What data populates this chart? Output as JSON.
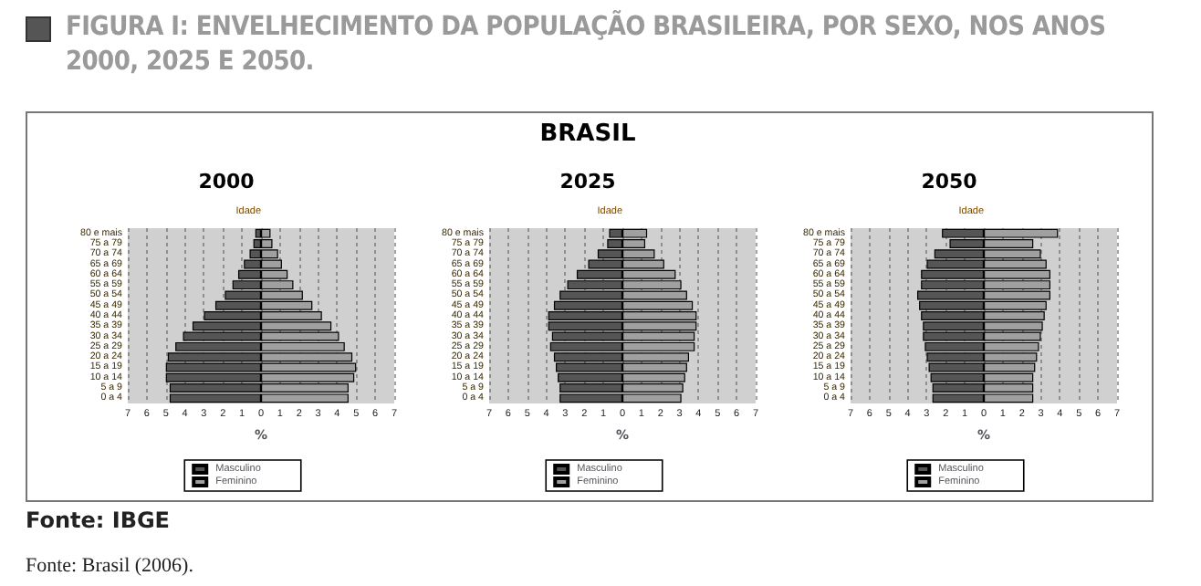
{
  "chart_data": [
    {
      "type": "other",
      "title": "FIGURA I: ENVELHECIMENTO DA POPULAÇÃO BRASILEIRA, POR SEXO, NOS ANOS 2000, 2025 E 2050.",
      "subtitle": "BRASIL",
      "annotations": [
        "Fonte: IBGE",
        "Fonte: Brasil (2006)."
      ]
    },
    {
      "type": "bar",
      "stacked": true,
      "orientation": "horizontal",
      "title": "2000",
      "xlabel": "%",
      "ylabel": "Idade",
      "grid": "x",
      "legend": "bottom",
      "categories": [
        "80 e mais",
        "75 a 79",
        "70 a 74",
        "65 a 69",
        "60 a 64",
        "55 a 59",
        "50 a 54",
        "45 a 49",
        "40 a 44",
        "35 a 39",
        "30 a 34",
        "25 a 29",
        "20 a 24",
        "15 a 19",
        "10 a 14",
        "5 a 9",
        "0 a 4"
      ],
      "xlim": [
        -7,
        7
      ],
      "xticks": [
        {
          "value": -7,
          "label": "7"
        },
        {
          "value": -6,
          "label": "6"
        },
        {
          "value": -5,
          "label": "5"
        },
        {
          "value": -4,
          "label": "4"
        },
        {
          "value": -3,
          "label": "3"
        },
        {
          "value": -2,
          "label": "2"
        },
        {
          "value": -1,
          "label": "1"
        },
        0,
        1,
        2,
        3,
        4,
        5,
        6,
        7
      ],
      "series": [
        {
          "name": "Masculino",
          "color": "#555555",
          "values": [
            -0.3,
            -0.4,
            -0.6,
            -0.9,
            -1.2,
            -1.5,
            -1.9,
            -2.4,
            -3.0,
            -3.6,
            -4.1,
            -4.5,
            -4.9,
            -5.0,
            -5.0,
            -4.8,
            -4.8
          ]
        },
        {
          "name": "Feminino",
          "color": "#a0a0a0",
          "values": [
            0.5,
            0.6,
            0.9,
            1.1,
            1.4,
            1.7,
            2.2,
            2.7,
            3.2,
            3.7,
            4.1,
            4.4,
            4.8,
            5.0,
            4.9,
            4.6,
            4.6
          ]
        }
      ]
    },
    {
      "type": "bar",
      "stacked": true,
      "orientation": "horizontal",
      "title": "2025",
      "xlabel": "%",
      "ylabel": "Idade",
      "grid": "x",
      "legend": "bottom",
      "categories": [
        "80 e mais",
        "75 a 79",
        "70 a 74",
        "65 a 69",
        "60 a 64",
        "55 a 59",
        "50 a 54",
        "45 a 49",
        "40 a 44",
        "35 a 39",
        "30 a 34",
        "25 a 29",
        "20 a 24",
        "15 a 19",
        "10 a 14",
        "5 a 9",
        "0 a 4"
      ],
      "xlim": [
        -7,
        7
      ],
      "xticks": [
        {
          "value": -7,
          "label": "7"
        },
        {
          "value": -6,
          "label": "6"
        },
        {
          "value": -5,
          "label": "5"
        },
        {
          "value": -4,
          "label": "4"
        },
        {
          "value": -3,
          "label": "3"
        },
        {
          "value": -2,
          "label": "2"
        },
        {
          "value": -1,
          "label": "1"
        },
        0,
        1,
        2,
        3,
        4,
        5,
        6,
        7
      ],
      "series": [
        {
          "name": "Masculino",
          "color": "#555555",
          "values": [
            -0.7,
            -0.8,
            -1.3,
            -1.8,
            -2.4,
            -2.9,
            -3.3,
            -3.6,
            -3.9,
            -3.9,
            -3.7,
            -3.8,
            -3.6,
            -3.5,
            -3.4,
            -3.3,
            -3.3
          ]
        },
        {
          "name": "Feminino",
          "color": "#a0a0a0",
          "values": [
            1.3,
            1.2,
            1.7,
            2.2,
            2.8,
            3.1,
            3.4,
            3.7,
            3.9,
            3.9,
            3.8,
            3.8,
            3.5,
            3.4,
            3.3,
            3.2,
            3.1
          ]
        }
      ]
    },
    {
      "type": "bar",
      "stacked": true,
      "orientation": "horizontal",
      "title": "2050",
      "xlabel": "%",
      "ylabel": "Idade",
      "grid": "x",
      "legend": "bottom",
      "categories": [
        "80 e mais",
        "75 a 79",
        "70 a 74",
        "65 a 69",
        "60 a 64",
        "55 a 59",
        "50 a 54",
        "45 a 49",
        "40 a 44",
        "35 a 39",
        "30 a 34",
        "25 a 29",
        "20 a 24",
        "15 a 19",
        "10 a 14",
        "5 a 9",
        "0 a 4"
      ],
      "xlim": [
        -7,
        7
      ],
      "xticks": [
        {
          "value": -7,
          "label": "7"
        },
        {
          "value": -6,
          "label": "6"
        },
        {
          "value": -5,
          "label": "5"
        },
        {
          "value": -4,
          "label": "4"
        },
        {
          "value": -3,
          "label": "3"
        },
        {
          "value": -2,
          "label": "2"
        },
        {
          "value": -1,
          "label": "1"
        },
        0,
        1,
        2,
        3,
        4,
        5,
        6,
        7
      ],
      "series": [
        {
          "name": "Masculino",
          "color": "#555555",
          "values": [
            -2.2,
            -1.8,
            -2.6,
            -3.0,
            -3.3,
            -3.3,
            -3.5,
            -3.4,
            -3.3,
            -3.2,
            -3.2,
            -3.1,
            -3.0,
            -2.9,
            -2.8,
            -2.7,
            -2.7
          ]
        },
        {
          "name": "Feminino",
          "color": "#a0a0a0",
          "values": [
            3.9,
            2.6,
            3.0,
            3.3,
            3.5,
            3.5,
            3.5,
            3.3,
            3.2,
            3.1,
            3.0,
            2.9,
            2.8,
            2.7,
            2.6,
            2.6,
            2.6
          ]
        }
      ]
    }
  ]
}
